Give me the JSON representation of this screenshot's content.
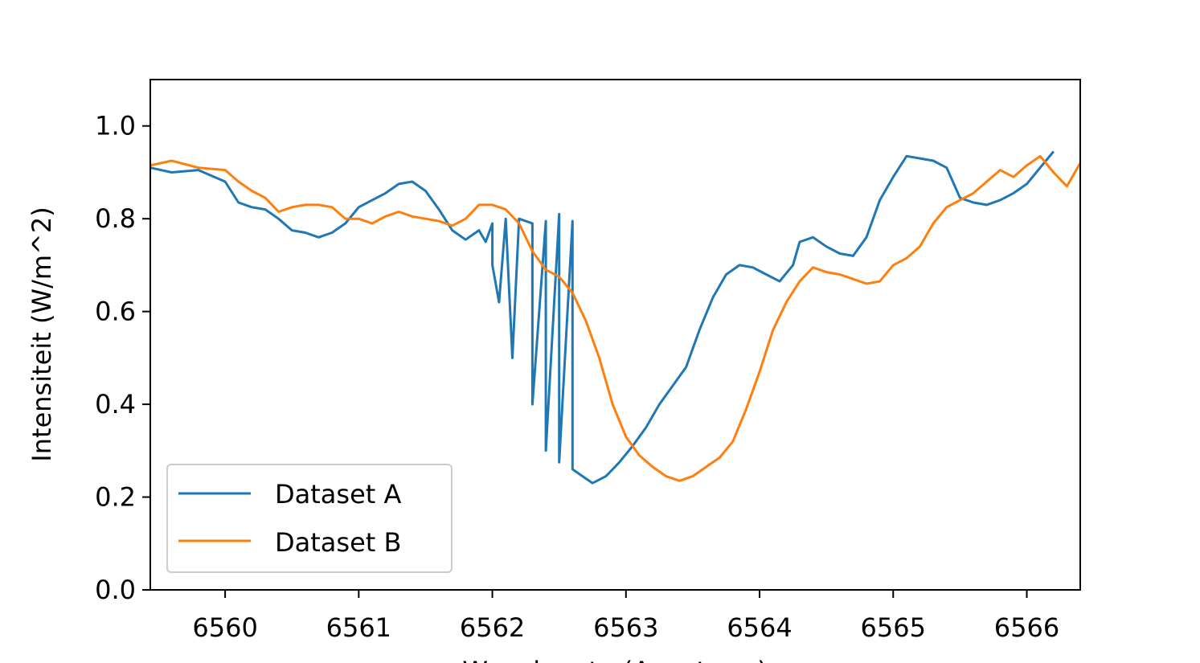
{
  "chart_data": {
    "type": "line",
    "title": "",
    "xlabel": "Wavelengte (Angstrom)",
    "ylabel": "Intensiteit (W/m^2)",
    "xlim": [
      6559.44,
      6566.4
    ],
    "ylim": [
      0.0,
      1.1
    ],
    "xticks": [
      6560,
      6561,
      6562,
      6563,
      6564,
      6565,
      6566
    ],
    "xtick_labels": [
      "6560",
      "6561",
      "6562",
      "6563",
      "6564",
      "6565",
      "6566"
    ],
    "yticks": [
      0.0,
      0.2,
      0.4,
      0.6,
      0.8,
      1.0
    ],
    "ytick_labels": [
      "0.0",
      "0.2",
      "0.4",
      "0.6",
      "0.8",
      "1.0"
    ],
    "grid": false,
    "legend": {
      "placement": "lower-left"
    },
    "series": [
      {
        "name": "Dataset A",
        "color": "#1f77b4",
        "points": [
          [
            6559.44,
            0.91
          ],
          [
            6559.6,
            0.9
          ],
          [
            6559.8,
            0.905
          ],
          [
            6560.0,
            0.88
          ],
          [
            6560.1,
            0.835
          ],
          [
            6560.2,
            0.825
          ],
          [
            6560.3,
            0.82
          ],
          [
            6560.4,
            0.8
          ],
          [
            6560.5,
            0.775
          ],
          [
            6560.6,
            0.77
          ],
          [
            6560.7,
            0.76
          ],
          [
            6560.8,
            0.77
          ],
          [
            6560.9,
            0.79
          ],
          [
            6561.0,
            0.825
          ],
          [
            6561.1,
            0.84
          ],
          [
            6561.2,
            0.855
          ],
          [
            6561.3,
            0.875
          ],
          [
            6561.4,
            0.88
          ],
          [
            6561.5,
            0.86
          ],
          [
            6561.6,
            0.82
          ],
          [
            6561.7,
            0.775
          ],
          [
            6561.8,
            0.755
          ],
          [
            6561.9,
            0.775
          ],
          [
            6562.0,
            0.79
          ],
          [
            6562.1,
            0.8
          ],
          [
            6562.2,
            0.8
          ],
          [
            6562.3,
            0.79
          ],
          [
            6562.4,
            0.795
          ],
          [
            6562.5,
            0.81
          ],
          [
            6562.6,
            0.795
          ],
          [
            6561.95,
            0.75
          ],
          [
            6562.0,
            0.7
          ],
          [
            6562.05,
            0.62
          ],
          [
            6562.15,
            0.5
          ],
          [
            6562.3,
            0.4
          ],
          [
            6562.4,
            0.3
          ],
          [
            6562.5,
            0.275
          ],
          [
            6562.6,
            0.26
          ],
          [
            6562.7,
            0.24
          ],
          [
            6562.75,
            0.23
          ],
          [
            6562.85,
            0.245
          ],
          [
            6562.95,
            0.275
          ],
          [
            6563.05,
            0.31
          ],
          [
            6563.15,
            0.35
          ],
          [
            6563.25,
            0.4
          ],
          [
            6563.35,
            0.44
          ],
          [
            6563.45,
            0.48
          ],
          [
            6563.55,
            0.56
          ],
          [
            6563.65,
            0.63
          ],
          [
            6563.75,
            0.68
          ],
          [
            6563.85,
            0.7
          ],
          [
            6563.95,
            0.695
          ],
          [
            6564.05,
            0.68
          ],
          [
            6564.15,
            0.665
          ],
          [
            6564.25,
            0.7
          ],
          [
            6564.3,
            0.75
          ],
          [
            6564.4,
            0.76
          ],
          [
            6564.5,
            0.74
          ],
          [
            6564.6,
            0.725
          ],
          [
            6564.7,
            0.72
          ],
          [
            6564.8,
            0.76
          ],
          [
            6564.9,
            0.84
          ],
          [
            6565.0,
            0.89
          ],
          [
            6565.1,
            0.935
          ],
          [
            6565.2,
            0.93
          ],
          [
            6565.3,
            0.925
          ],
          [
            6565.4,
            0.91
          ],
          [
            6565.5,
            0.845
          ],
          [
            6565.6,
            0.835
          ],
          [
            6565.7,
            0.83
          ],
          [
            6565.8,
            0.84
          ],
          [
            6565.9,
            0.855
          ],
          [
            6566.0,
            0.875
          ],
          [
            6566.1,
            0.91
          ],
          [
            6566.2,
            0.945
          ]
        ]
      },
      {
        "name": "Dataset B",
        "color": "#ff7f0e",
        "points": [
          [
            6559.44,
            0.915
          ],
          [
            6559.6,
            0.925
          ],
          [
            6559.8,
            0.91
          ],
          [
            6560.0,
            0.905
          ],
          [
            6560.1,
            0.88
          ],
          [
            6560.2,
            0.86
          ],
          [
            6560.3,
            0.845
          ],
          [
            6560.4,
            0.815
          ],
          [
            6560.5,
            0.825
          ],
          [
            6560.6,
            0.83
          ],
          [
            6560.7,
            0.83
          ],
          [
            6560.8,
            0.825
          ],
          [
            6560.9,
            0.8
          ],
          [
            6561.0,
            0.8
          ],
          [
            6561.1,
            0.79
          ],
          [
            6561.2,
            0.805
          ],
          [
            6561.3,
            0.815
          ],
          [
            6561.4,
            0.805
          ],
          [
            6561.5,
            0.8
          ],
          [
            6561.6,
            0.795
          ],
          [
            6561.7,
            0.785
          ],
          [
            6561.8,
            0.8
          ],
          [
            6561.9,
            0.83
          ],
          [
            6562.0,
            0.83
          ],
          [
            6562.1,
            0.82
          ],
          [
            6562.2,
            0.79
          ],
          [
            6562.3,
            0.73
          ],
          [
            6562.4,
            0.69
          ],
          [
            6562.5,
            0.675
          ],
          [
            6562.6,
            0.64
          ],
          [
            6562.7,
            0.58
          ],
          [
            6562.8,
            0.5
          ],
          [
            6562.9,
            0.4
          ],
          [
            6563.0,
            0.33
          ],
          [
            6563.1,
            0.29
          ],
          [
            6563.2,
            0.265
          ],
          [
            6563.3,
            0.245
          ],
          [
            6563.4,
            0.235
          ],
          [
            6563.5,
            0.245
          ],
          [
            6563.6,
            0.265
          ],
          [
            6563.7,
            0.285
          ],
          [
            6563.8,
            0.32
          ],
          [
            6563.9,
            0.39
          ],
          [
            6564.0,
            0.47
          ],
          [
            6564.1,
            0.56
          ],
          [
            6564.2,
            0.62
          ],
          [
            6564.3,
            0.665
          ],
          [
            6564.4,
            0.695
          ],
          [
            6564.5,
            0.685
          ],
          [
            6564.6,
            0.68
          ],
          [
            6564.7,
            0.67
          ],
          [
            6564.8,
            0.66
          ],
          [
            6564.9,
            0.665
          ],
          [
            6565.0,
            0.7
          ],
          [
            6565.1,
            0.715
          ],
          [
            6565.2,
            0.74
          ],
          [
            6565.3,
            0.79
          ],
          [
            6565.4,
            0.825
          ],
          [
            6565.5,
            0.84
          ],
          [
            6565.6,
            0.855
          ],
          [
            6565.7,
            0.88
          ],
          [
            6565.8,
            0.905
          ],
          [
            6565.9,
            0.89
          ],
          [
            6566.0,
            0.915
          ],
          [
            6566.1,
            0.935
          ],
          [
            6566.2,
            0.9
          ],
          [
            6566.3,
            0.87
          ],
          [
            6566.4,
            0.92
          ]
        ]
      }
    ]
  }
}
